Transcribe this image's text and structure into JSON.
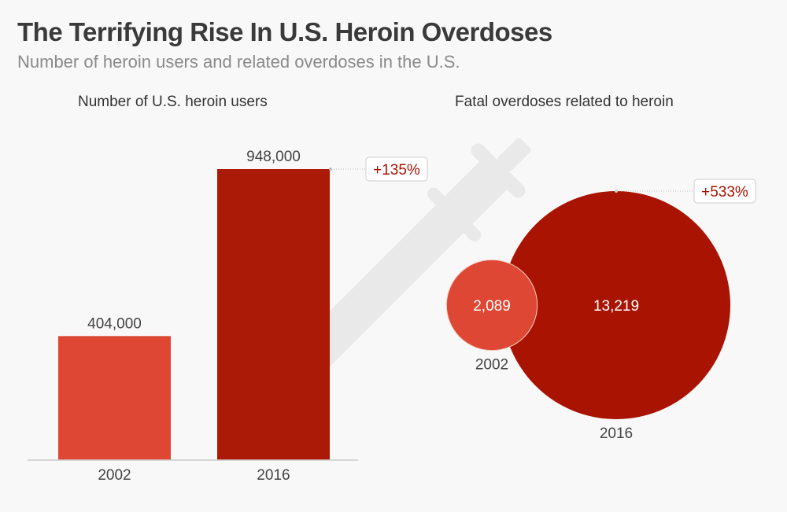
{
  "title": "The Terrifying Rise In U.S. Heroin Overdoses",
  "subtitle": "Number of heroin users and related overdoses in the U.S.",
  "colors": {
    "2002": "#de4733",
    "2016": "#a91402",
    "change_label": "#a91402",
    "syringe": "#e8e8e8"
  },
  "chart_data": [
    {
      "type": "bar",
      "title": "Number of U.S. heroin users",
      "categories": [
        "2002",
        "2016"
      ],
      "values": [
        404000,
        948000
      ],
      "value_labels": [
        "404,000",
        "948,000"
      ],
      "change_label": "+135%"
    },
    {
      "type": "bubble",
      "title": "Fatal overdoses related to heroin",
      "categories": [
        "2002",
        "2016"
      ],
      "values": [
        2089,
        13219
      ],
      "value_labels": [
        "2,089",
        "13,219"
      ],
      "change_label": "+533%"
    }
  ]
}
